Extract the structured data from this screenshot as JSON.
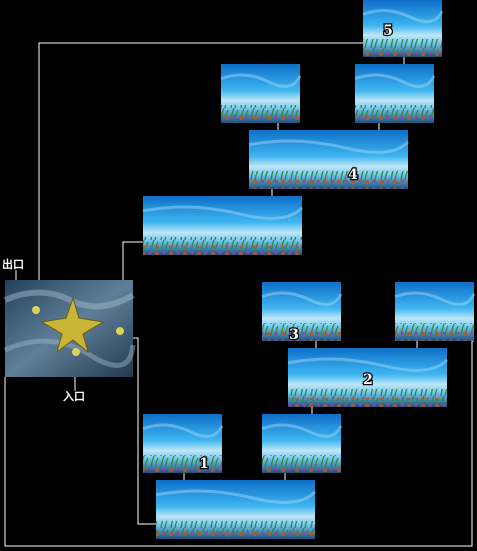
{
  "map": {
    "entrance_label": "入口",
    "exit_label": "出口",
    "room_labels": [
      "1",
      "2",
      "3",
      "4",
      "5"
    ],
    "colors": {
      "background": "#000000",
      "connector": "#ffffff",
      "water_top": "#0e6fc8",
      "water_mid": "#3fb6f0",
      "sand": "#cfe8f4",
      "seaweed": "#2b8a3e",
      "coral": "#b5562a",
      "starfish": "#c9b536"
    }
  }
}
